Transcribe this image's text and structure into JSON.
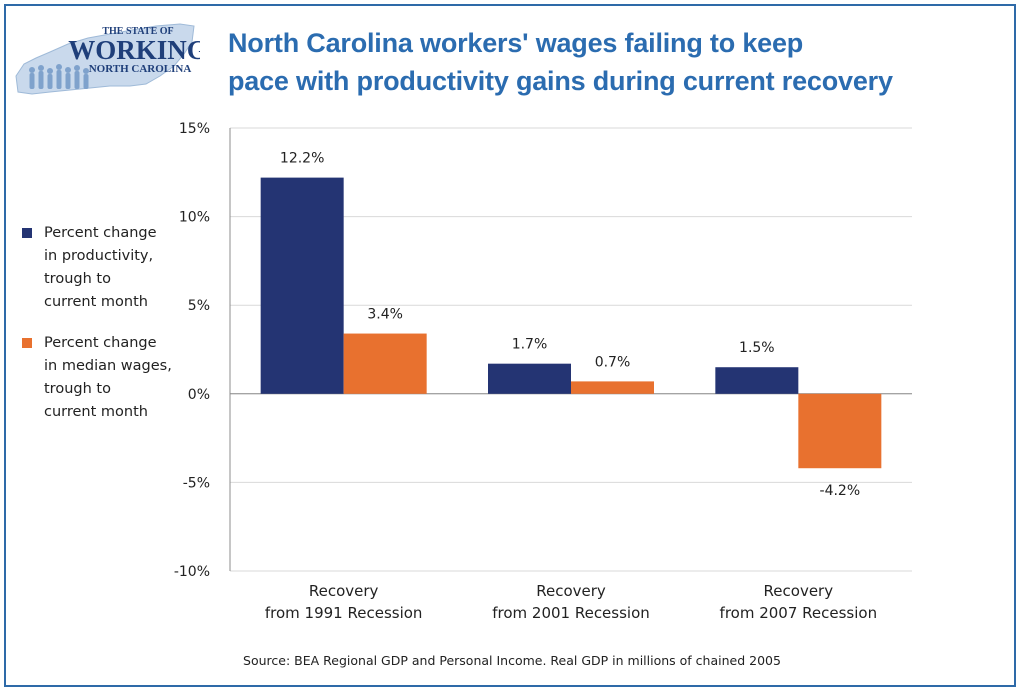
{
  "title_lines": [
    "North Carolina workers' wages failing to keep",
    "pace with productivity gains during current recovery"
  ],
  "logo": {
    "line1": "THE STATE OF",
    "line2": "WORKING",
    "line3": "NORTH CAROLINA"
  },
  "source": "Source:  BEA Regional GDP and Personal Income. Real GDP in millions of chained 2005",
  "colors": {
    "productivity": "#243473",
    "wages": "#e8712f",
    "title": "#2b6cb0",
    "frame": "#2e6aa8"
  },
  "chart_data": {
    "type": "bar",
    "categories": [
      [
        "Recovery",
        "from 1991 Recession"
      ],
      [
        "Recovery",
        "from 2001 Recession"
      ],
      [
        "Recovery",
        "from 2007 Recession"
      ]
    ],
    "series": [
      {
        "name": "Percent change in productivity, trough to current month",
        "legend_lines": "Percent change\nin productivity,\ntrough to\ncurrent month",
        "color": "#243473",
        "values": [
          12.2,
          1.7,
          1.5
        ],
        "labels": [
          "12.2%",
          "1.7%",
          "1.5%"
        ]
      },
      {
        "name": "Percent change in median wages, trough to current month",
        "legend_lines": "Percent change\nin median wages,\ntrough to\ncurrent month",
        "color": "#e8712f",
        "values": [
          3.4,
          0.7,
          -4.2
        ],
        "labels": [
          "3.4%",
          "0.7%",
          "-4.2%"
        ]
      }
    ],
    "ylim": [
      -10,
      15
    ],
    "yticks": [
      15,
      10,
      5,
      0,
      -5,
      -10
    ],
    "ytick_labels": [
      "15%",
      "10%",
      "5%",
      "0%",
      "-5%",
      "-10%"
    ],
    "grid": true,
    "legend_position": "left"
  }
}
